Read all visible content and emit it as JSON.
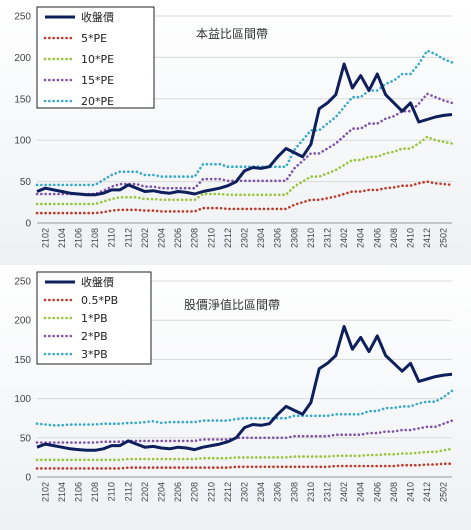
{
  "chart_data": [
    {
      "type": "line",
      "title": "本益比區間帶",
      "ylim": [
        0,
        250
      ],
      "yticks": [
        0,
        50,
        100,
        150,
        200,
        250
      ],
      "grid": true,
      "legend_position": "top-left",
      "x": [
        "2101",
        "2102",
        "2103",
        "2104",
        "2105",
        "2106",
        "2107",
        "2108",
        "2109",
        "2110",
        "2111",
        "2112",
        "2201",
        "2202",
        "2203",
        "2204",
        "2205",
        "2206",
        "2207",
        "2208",
        "2209",
        "2210",
        "2211",
        "2212",
        "2301",
        "2302",
        "2303",
        "2304",
        "2305",
        "2306",
        "2307",
        "2308",
        "2309",
        "2310",
        "2311",
        "2312",
        "2401",
        "2402",
        "2403",
        "2404",
        "2405",
        "2406",
        "2407",
        "2408",
        "2409",
        "2410",
        "2411",
        "2412",
        "2501",
        "2502",
        "2503"
      ],
      "xtick_labels": [
        "2102",
        "2104",
        "2106",
        "2108",
        "2110",
        "2112",
        "2202",
        "2204",
        "2206",
        "2208",
        "2210",
        "2212",
        "2302",
        "2304",
        "2306",
        "2308",
        "2310",
        "2312",
        "2402",
        "2404",
        "2406",
        "2408",
        "2410",
        "2412",
        "2502"
      ],
      "series": [
        {
          "name": "收盤價",
          "color": "#0d1f5c",
          "style": "solid",
          "values": [
            38,
            42,
            40,
            38,
            36,
            35,
            34,
            34,
            36,
            40,
            40,
            46,
            42,
            38,
            39,
            37,
            36,
            38,
            37,
            35,
            38,
            40,
            42,
            45,
            50,
            63,
            67,
            66,
            68,
            80,
            90,
            85,
            80,
            95,
            138,
            145,
            155,
            192,
            163,
            178,
            160,
            180,
            155,
            145,
            135,
            145,
            122,
            125,
            128,
            130,
            131
          ]
        },
        {
          "name": "5*PE",
          "color": "#c0392b",
          "style": "dotted",
          "values": [
            12,
            12,
            12,
            12,
            12,
            12,
            12,
            12,
            13,
            15,
            16,
            16,
            16,
            15,
            15,
            14,
            14,
            14,
            14,
            14,
            18,
            18,
            18,
            17,
            17,
            17,
            17,
            17,
            17,
            17,
            17,
            22,
            25,
            28,
            28,
            30,
            32,
            35,
            38,
            38,
            40,
            40,
            42,
            43,
            45,
            45,
            48,
            50,
            48,
            47,
            46
          ]
        },
        {
          "name": "10*PE",
          "color": "#9ac43b",
          "style": "dotted",
          "values": [
            23,
            23,
            23,
            23,
            23,
            23,
            23,
            23,
            26,
            29,
            31,
            31,
            31,
            29,
            29,
            28,
            28,
            28,
            28,
            28,
            35,
            35,
            35,
            34,
            34,
            34,
            34,
            34,
            34,
            34,
            34,
            44,
            50,
            56,
            56,
            60,
            64,
            70,
            76,
            76,
            80,
            80,
            84,
            86,
            90,
            90,
            96,
            104,
            100,
            98,
            96
          ]
        },
        {
          "name": "15*PE",
          "color": "#8054a8",
          "style": "dotted",
          "values": [
            35,
            35,
            35,
            35,
            35,
            35,
            35,
            35,
            39,
            44,
            47,
            47,
            47,
            44,
            44,
            42,
            42,
            42,
            42,
            42,
            53,
            53,
            53,
            51,
            51,
            51,
            51,
            51,
            51,
            51,
            51,
            66,
            75,
            84,
            84,
            90,
            96,
            105,
            114,
            114,
            120,
            120,
            126,
            129,
            135,
            135,
            144,
            156,
            152,
            148,
            145
          ]
        },
        {
          "name": "20*PE",
          "color": "#36a9c9",
          "style": "dotted",
          "values": [
            46,
            46,
            46,
            46,
            46,
            46,
            46,
            46,
            52,
            58,
            62,
            62,
            62,
            58,
            58,
            56,
            56,
            56,
            56,
            56,
            71,
            71,
            71,
            68,
            68,
            68,
            68,
            68,
            68,
            68,
            68,
            88,
            100,
            112,
            112,
            120,
            128,
            140,
            152,
            152,
            160,
            160,
            168,
            172,
            180,
            180,
            192,
            208,
            204,
            198,
            194
          ]
        }
      ]
    },
    {
      "type": "line",
      "title": "股價淨值比區間帶",
      "ylim": [
        0,
        250
      ],
      "yticks": [
        0,
        50,
        100,
        150,
        200,
        250
      ],
      "grid": true,
      "legend_position": "top-left",
      "x": [
        "2101",
        "2102",
        "2103",
        "2104",
        "2105",
        "2106",
        "2107",
        "2108",
        "2109",
        "2110",
        "2111",
        "2112",
        "2201",
        "2202",
        "2203",
        "2204",
        "2205",
        "2206",
        "2207",
        "2208",
        "2209",
        "2210",
        "2211",
        "2212",
        "2301",
        "2302",
        "2303",
        "2304",
        "2305",
        "2306",
        "2307",
        "2308",
        "2309",
        "2310",
        "2311",
        "2312",
        "2401",
        "2402",
        "2403",
        "2404",
        "2405",
        "2406",
        "2407",
        "2408",
        "2409",
        "2410",
        "2411",
        "2412",
        "2501",
        "2502",
        "2503"
      ],
      "xtick_labels": [
        "2102",
        "2104",
        "2106",
        "2108",
        "2110",
        "2112",
        "2202",
        "2204",
        "2206",
        "2208",
        "2210",
        "2212",
        "2302",
        "2304",
        "2306",
        "2308",
        "2310",
        "2312",
        "2402",
        "2404",
        "2406",
        "2408",
        "2410",
        "2412",
        "2502"
      ],
      "series": [
        {
          "name": "收盤價",
          "color": "#0d1f5c",
          "style": "solid",
          "values": [
            38,
            42,
            40,
            38,
            36,
            35,
            34,
            34,
            36,
            40,
            40,
            46,
            42,
            38,
            39,
            37,
            36,
            38,
            37,
            35,
            38,
            40,
            42,
            45,
            50,
            63,
            67,
            66,
            68,
            80,
            90,
            85,
            80,
            95,
            138,
            145,
            155,
            192,
            163,
            178,
            160,
            180,
            155,
            145,
            135,
            145,
            122,
            125,
            128,
            130,
            131
          ]
        },
        {
          "name": "0.5*PB",
          "color": "#c0392b",
          "style": "dotted",
          "values": [
            11,
            11,
            11,
            11,
            11,
            11,
            11,
            11,
            11,
            11,
            11,
            12,
            12,
            12,
            12,
            12,
            12,
            12,
            12,
            12,
            12,
            12,
            12,
            12,
            13,
            13,
            13,
            13,
            13,
            13,
            13,
            13,
            13,
            13,
            13,
            13,
            14,
            14,
            14,
            14,
            14,
            14,
            14,
            14,
            15,
            15,
            15,
            16,
            16,
            17,
            17
          ]
        },
        {
          "name": "1*PB",
          "color": "#9ac43b",
          "style": "dotted",
          "values": [
            22,
            22,
            22,
            22,
            22,
            22,
            22,
            22,
            22,
            22,
            22,
            23,
            23,
            23,
            23,
            23,
            23,
            23,
            23,
            23,
            24,
            24,
            24,
            24,
            25,
            25,
            25,
            25,
            25,
            25,
            25,
            26,
            26,
            26,
            26,
            26,
            27,
            27,
            27,
            27,
            28,
            28,
            29,
            29,
            30,
            30,
            31,
            32,
            32,
            34,
            36
          ]
        },
        {
          "name": "2*PB",
          "color": "#8054a8",
          "style": "dotted",
          "values": [
            44,
            44,
            44,
            44,
            44,
            44,
            44,
            44,
            45,
            45,
            45,
            46,
            46,
            46,
            46,
            46,
            46,
            46,
            46,
            46,
            48,
            48,
            48,
            48,
            50,
            50,
            50,
            50,
            50,
            50,
            50,
            52,
            52,
            52,
            52,
            52,
            54,
            54,
            54,
            54,
            56,
            56,
            58,
            58,
            60,
            60,
            62,
            64,
            64,
            68,
            72
          ]
        },
        {
          "name": "3*PB",
          "color": "#36a9c9",
          "style": "dotted",
          "values": [
            68,
            67,
            66,
            66,
            67,
            67,
            67,
            67,
            68,
            68,
            68,
            69,
            69,
            70,
            71,
            69,
            70,
            70,
            70,
            70,
            72,
            72,
            72,
            72,
            74,
            75,
            75,
            75,
            75,
            75,
            75,
            78,
            78,
            78,
            78,
            78,
            80,
            80,
            80,
            80,
            84,
            84,
            88,
            88,
            90,
            90,
            94,
            96,
            96,
            102,
            110
          ]
        }
      ]
    }
  ]
}
